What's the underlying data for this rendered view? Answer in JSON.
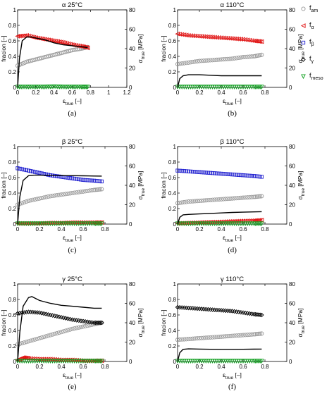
{
  "chart_data": [
    {
      "type": "scatter",
      "panel": "a",
      "caption": "(a)",
      "title": "α 25°C",
      "xlabel_main": "ε",
      "xlabel_sub": "true",
      "xlabel_unit": "[–]",
      "ylabel": "fracion [–]",
      "y2label_main": "σ",
      "y2label_sub": "true",
      "y2label_unit": "[MPa]",
      "xlim": [
        0,
        1.2
      ],
      "xticks": [
        "0",
        "0.2",
        "0.4",
        "0.6",
        "0.8",
        "1",
        "1.2"
      ],
      "ylim": [
        0,
        1
      ],
      "yticks": [
        "0",
        "0.2",
        "0.4",
        "0.6",
        "0.8",
        "1"
      ],
      "y2lim": [
        0,
        80
      ],
      "y2ticks": [
        "0",
        "20",
        "40",
        "60",
        "80"
      ],
      "series": [
        {
          "key": "f_am",
          "x": [
            0,
            0.1,
            0.2,
            0.3,
            0.4,
            0.5,
            0.6,
            0.7,
            0.77
          ],
          "y": [
            0.28,
            0.33,
            0.36,
            0.39,
            0.42,
            0.45,
            0.48,
            0.5,
            0.52
          ]
        },
        {
          "key": "f_alpha",
          "x": [
            0,
            0.1,
            0.2,
            0.3,
            0.4,
            0.5,
            0.6,
            0.7,
            0.77
          ],
          "y": [
            0.66,
            0.67,
            0.64,
            0.62,
            0.6,
            0.58,
            0.55,
            0.53,
            0.51
          ]
        },
        {
          "key": "f_meso",
          "x": [
            0,
            0.1,
            0.2,
            0.3,
            0.4,
            0.5,
            0.6,
            0.7,
            0.77
          ],
          "y": [
            0.005,
            0.005,
            0.005,
            0.005,
            0.01,
            0.005,
            0.005,
            0.005,
            0.005
          ]
        },
        {
          "key": "stress",
          "axis": "right",
          "x": [
            0,
            0.02,
            0.05,
            0.1,
            0.15,
            0.2,
            0.3,
            0.4,
            0.5,
            0.6,
            0.7,
            0.77
          ],
          "y": [
            0,
            30,
            48,
            52,
            52,
            51,
            49,
            46,
            44,
            43,
            42,
            41
          ]
        }
      ]
    },
    {
      "type": "scatter",
      "panel": "b",
      "caption": "(b)",
      "title": "α 110°C",
      "xlabel_main": "ε",
      "xlabel_sub": "true",
      "xlabel_unit": "[–]",
      "ylabel": "fracion [–]",
      "y2label_main": "σ",
      "y2label_sub": "true",
      "y2label_unit": "[MPa]",
      "xlim": [
        0,
        1
      ],
      "xticks": [
        "0",
        "0.2",
        "0.4",
        "0.6",
        "0.8"
      ],
      "ylim": [
        0,
        1
      ],
      "yticks": [
        "0",
        "0.2",
        "0.4",
        "0.6",
        "0.8",
        "1"
      ],
      "y2lim": [
        0,
        80
      ],
      "y2ticks": [
        "0",
        "20",
        "40",
        "60",
        "80"
      ],
      "series": [
        {
          "key": "f_am",
          "x": [
            0,
            0.1,
            0.2,
            0.3,
            0.4,
            0.5,
            0.6,
            0.7,
            0.77
          ],
          "y": [
            0.3,
            0.32,
            0.34,
            0.35,
            0.36,
            0.37,
            0.39,
            0.4,
            0.42
          ]
        },
        {
          "key": "f_alpha",
          "x": [
            0,
            0.1,
            0.2,
            0.3,
            0.4,
            0.5,
            0.6,
            0.7,
            0.77
          ],
          "y": [
            0.69,
            0.67,
            0.66,
            0.65,
            0.64,
            0.63,
            0.62,
            0.6,
            0.59
          ]
        },
        {
          "key": "f_meso",
          "x": [
            0,
            0.1,
            0.2,
            0.3,
            0.4,
            0.5,
            0.6,
            0.7,
            0.77
          ],
          "y": [
            0.005,
            0.005,
            0.005,
            0.005,
            0.005,
            0.005,
            0.005,
            0.005,
            0.005
          ]
        },
        {
          "key": "stress",
          "axis": "right",
          "x": [
            0,
            0.02,
            0.05,
            0.1,
            0.2,
            0.3,
            0.4,
            0.5,
            0.6,
            0.7,
            0.77
          ],
          "y": [
            0,
            9,
            12,
            13,
            13,
            12.5,
            12,
            12,
            12,
            12,
            12
          ]
        }
      ]
    },
    {
      "type": "scatter",
      "panel": "c",
      "caption": "(c)",
      "title": "β 25°C",
      "xlabel_main": "ε",
      "xlabel_sub": "true",
      "xlabel_unit": "[–]",
      "ylabel": "fracion [–]",
      "y2label_main": "σ",
      "y2label_sub": "true",
      "y2label_unit": "[MPa]",
      "xlim": [
        0,
        1
      ],
      "xticks": [
        "0",
        "0.2",
        "0.4",
        "0.6",
        "0.8"
      ],
      "ylim": [
        0,
        1
      ],
      "yticks": [
        "0",
        "0.2",
        "0.4",
        "0.6",
        "0.8",
        "1"
      ],
      "y2lim": [
        0,
        80
      ],
      "y2ticks": [
        "0",
        "20",
        "40",
        "60",
        "80"
      ],
      "series": [
        {
          "key": "f_am",
          "x": [
            0,
            0.1,
            0.2,
            0.3,
            0.4,
            0.5,
            0.6,
            0.7,
            0.77
          ],
          "y": [
            0.25,
            0.3,
            0.33,
            0.36,
            0.38,
            0.4,
            0.42,
            0.44,
            0.45
          ]
        },
        {
          "key": "f_beta",
          "x": [
            0,
            0.1,
            0.2,
            0.3,
            0.4,
            0.5,
            0.6,
            0.7,
            0.77
          ],
          "y": [
            0.72,
            0.69,
            0.66,
            0.63,
            0.61,
            0.59,
            0.57,
            0.56,
            0.55
          ]
        },
        {
          "key": "f_alpha",
          "x": [
            0,
            0.1,
            0.2,
            0.3,
            0.4,
            0.5,
            0.6,
            0.7,
            0.77
          ],
          "y": [
            0.01,
            0.01,
            0.01,
            0.015,
            0.015,
            0.02,
            0.02,
            0.02,
            0.02
          ]
        },
        {
          "key": "f_meso",
          "x": [
            0,
            0.1,
            0.2,
            0.3,
            0.4,
            0.5,
            0.6,
            0.7,
            0.77
          ],
          "y": [
            0.005,
            0.005,
            0.005,
            0.005,
            0.005,
            0.005,
            0.005,
            0.005,
            0.005
          ]
        },
        {
          "key": "stress",
          "axis": "right",
          "x": [
            0,
            0.02,
            0.05,
            0.1,
            0.15,
            0.2,
            0.3,
            0.4,
            0.5,
            0.6,
            0.7,
            0.77
          ],
          "y": [
            0,
            28,
            45,
            50,
            50.5,
            50.5,
            50.3,
            50,
            50,
            49.8,
            49.6,
            49.5
          ]
        }
      ]
    },
    {
      "type": "scatter",
      "panel": "d",
      "caption": "(d)",
      "title": "β 110°C",
      "xlabel_main": "ε",
      "xlabel_sub": "true",
      "xlabel_unit": "[–]",
      "ylabel": "fracion [–]",
      "y2label_main": "σ",
      "y2label_sub": "true",
      "y2label_unit": "[MPa]",
      "xlim": [
        0,
        1
      ],
      "xticks": [
        "0",
        "0.2",
        "0.4",
        "0.6",
        "0.8"
      ],
      "ylim": [
        0,
        1
      ],
      "yticks": [
        "0",
        "0.2",
        "0.4",
        "0.6",
        "0.8",
        "1"
      ],
      "y2lim": [
        0,
        80
      ],
      "y2ticks": [
        "0",
        "20",
        "40",
        "60",
        "80"
      ],
      "series": [
        {
          "key": "f_am",
          "x": [
            0,
            0.1,
            0.2,
            0.3,
            0.4,
            0.5,
            0.6,
            0.7,
            0.77
          ],
          "y": [
            0.27,
            0.29,
            0.3,
            0.31,
            0.32,
            0.33,
            0.34,
            0.35,
            0.36
          ]
        },
        {
          "key": "f_beta",
          "x": [
            0,
            0.1,
            0.2,
            0.3,
            0.4,
            0.5,
            0.6,
            0.7,
            0.77
          ],
          "y": [
            0.69,
            0.68,
            0.67,
            0.66,
            0.65,
            0.64,
            0.63,
            0.62,
            0.61
          ]
        },
        {
          "key": "f_alpha",
          "x": [
            0,
            0.1,
            0.2,
            0.3,
            0.4,
            0.5,
            0.6,
            0.7,
            0.77
          ],
          "y": [
            0.01,
            0.015,
            0.02,
            0.025,
            0.03,
            0.035,
            0.04,
            0.045,
            0.05
          ]
        },
        {
          "key": "f_meso",
          "x": [
            0,
            0.1,
            0.2,
            0.3,
            0.4,
            0.5,
            0.6,
            0.7,
            0.77
          ],
          "y": [
            0.005,
            0.005,
            0.005,
            0.005,
            0.005,
            0.005,
            0.005,
            0.005,
            0.005
          ]
        },
        {
          "key": "stress",
          "axis": "right",
          "x": [
            0,
            0.02,
            0.05,
            0.1,
            0.2,
            0.3,
            0.4,
            0.5,
            0.6,
            0.7,
            0.77
          ],
          "y": [
            0,
            7,
            9.5,
            10,
            10.5,
            11,
            11.5,
            12,
            12.3,
            12.6,
            12.8
          ]
        }
      ]
    },
    {
      "type": "scatter",
      "panel": "e",
      "caption": "(e)",
      "title": "γ 25°C",
      "xlabel_main": "ε",
      "xlabel_sub": "true",
      "xlabel_unit": "[–]",
      "ylabel": "fracion [–]",
      "y2label_main": "σ",
      "y2label_sub": "true",
      "y2label_unit": "[MPa]",
      "xlim": [
        0,
        1
      ],
      "xticks": [
        "0",
        "0.2",
        "0.4",
        "0.6",
        "0.8"
      ],
      "ylim": [
        0,
        1
      ],
      "yticks": [
        "0",
        "0.2",
        "0.4",
        "0.6",
        "0.8",
        "1"
      ],
      "y2lim": [
        0,
        80
      ],
      "y2ticks": [
        "0",
        "20",
        "40",
        "60",
        "80"
      ],
      "series": [
        {
          "key": "f_am",
          "x": [
            0,
            0.1,
            0.2,
            0.3,
            0.4,
            0.5,
            0.6,
            0.7,
            0.77
          ],
          "y": [
            0.22,
            0.26,
            0.3,
            0.34,
            0.38,
            0.42,
            0.45,
            0.48,
            0.5
          ]
        },
        {
          "key": "f_gamma",
          "x": [
            0,
            0.1,
            0.2,
            0.3,
            0.4,
            0.5,
            0.6,
            0.7,
            0.77
          ],
          "y": [
            0.62,
            0.64,
            0.63,
            0.6,
            0.57,
            0.54,
            0.52,
            0.5,
            0.5
          ]
        },
        {
          "key": "f_alpha",
          "x": [
            0,
            0.05,
            0.1,
            0.2,
            0.3,
            0.4,
            0.5,
            0.6,
            0.7,
            0.77
          ],
          "y": [
            0.02,
            0.05,
            0.04,
            0.03,
            0.03,
            0.02,
            0.02,
            0.01,
            0.01,
            0.01
          ]
        },
        {
          "key": "f_meso",
          "x": [
            0,
            0.1,
            0.2,
            0.3,
            0.4,
            0.5,
            0.6,
            0.7,
            0.77
          ],
          "y": [
            0.005,
            0.005,
            0.005,
            0.005,
            0.005,
            0.005,
            0.005,
            0.005,
            0.005
          ]
        },
        {
          "key": "stress",
          "axis": "right",
          "x": [
            0,
            0.02,
            0.05,
            0.1,
            0.13,
            0.2,
            0.3,
            0.4,
            0.5,
            0.6,
            0.7,
            0.77
          ],
          "y": [
            0,
            30,
            57,
            66,
            67,
            63,
            60,
            58,
            57,
            56,
            55,
            55
          ]
        }
      ]
    },
    {
      "type": "scatter",
      "panel": "f",
      "caption": "(f)",
      "title": "γ 110°C",
      "xlabel_main": "ε",
      "xlabel_sub": "true",
      "xlabel_unit": "[–]",
      "ylabel": "fracion [–]",
      "y2label_main": "σ",
      "y2label_sub": "true",
      "y2label_unit": "[MPa]",
      "xlim": [
        0,
        1
      ],
      "xticks": [
        "0",
        "0.2",
        "0.4",
        "0.6",
        "0.8"
      ],
      "ylim": [
        0,
        1
      ],
      "yticks": [
        "0",
        "0.2",
        "0.4",
        "0.6",
        "0.8",
        "1"
      ],
      "y2lim": [
        0,
        80
      ],
      "y2ticks": [
        "0",
        "20",
        "40",
        "60",
        "80"
      ],
      "series": [
        {
          "key": "f_am",
          "x": [
            0,
            0.1,
            0.2,
            0.3,
            0.4,
            0.5,
            0.6,
            0.7,
            0.77
          ],
          "y": [
            0.28,
            0.29,
            0.3,
            0.31,
            0.32,
            0.33,
            0.34,
            0.35,
            0.36
          ]
        },
        {
          "key": "f_gamma",
          "x": [
            0,
            0.1,
            0.2,
            0.3,
            0.4,
            0.5,
            0.6,
            0.7,
            0.77
          ],
          "y": [
            0.7,
            0.69,
            0.68,
            0.67,
            0.66,
            0.65,
            0.63,
            0.61,
            0.6
          ]
        },
        {
          "key": "f_meso",
          "x": [
            0,
            0.1,
            0.2,
            0.3,
            0.4,
            0.5,
            0.6,
            0.7,
            0.77
          ],
          "y": [
            0.005,
            0.005,
            0.005,
            0.005,
            0.005,
            0.005,
            0.005,
            0.005,
            0.005
          ]
        },
        {
          "key": "stress",
          "axis": "right",
          "x": [
            0,
            0.02,
            0.05,
            0.1,
            0.2,
            0.3,
            0.4,
            0.5,
            0.6,
            0.7,
            0.77
          ],
          "y": [
            0,
            9,
            12.5,
            13,
            12.8,
            12.6,
            12.5,
            12.5,
            12.6,
            12.7,
            12.8
          ]
        }
      ]
    }
  ],
  "legend": [
    {
      "key": "f_am",
      "main": "f",
      "sub": "am",
      "marker": "circle-icon",
      "color": "#999999"
    },
    {
      "key": "f_alpha",
      "main": "f",
      "sub": "α",
      "marker": "triangle-left-icon",
      "color": "#e01010"
    },
    {
      "key": "f_beta",
      "main": "f",
      "sub": "β",
      "marker": "square-icon",
      "color": "#2020d0"
    },
    {
      "key": "f_gamma",
      "main": "f",
      "sub": "γ",
      "marker": "diamond-icon",
      "color": "#000000"
    },
    {
      "key": "f_meso",
      "main": "f",
      "sub": "meso",
      "marker": "triangle-down-icon",
      "color": "#10a020"
    }
  ],
  "stress_color": "#000000"
}
